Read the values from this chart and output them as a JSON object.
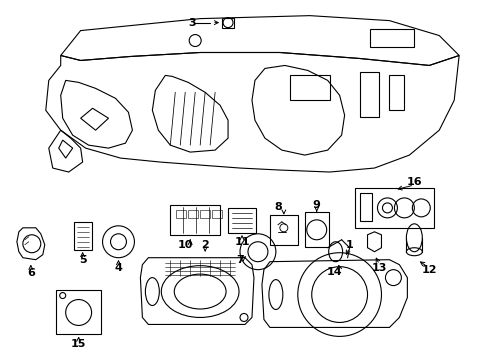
{
  "background_color": "#ffffff",
  "line_color": "#000000",
  "lw": 0.8
}
